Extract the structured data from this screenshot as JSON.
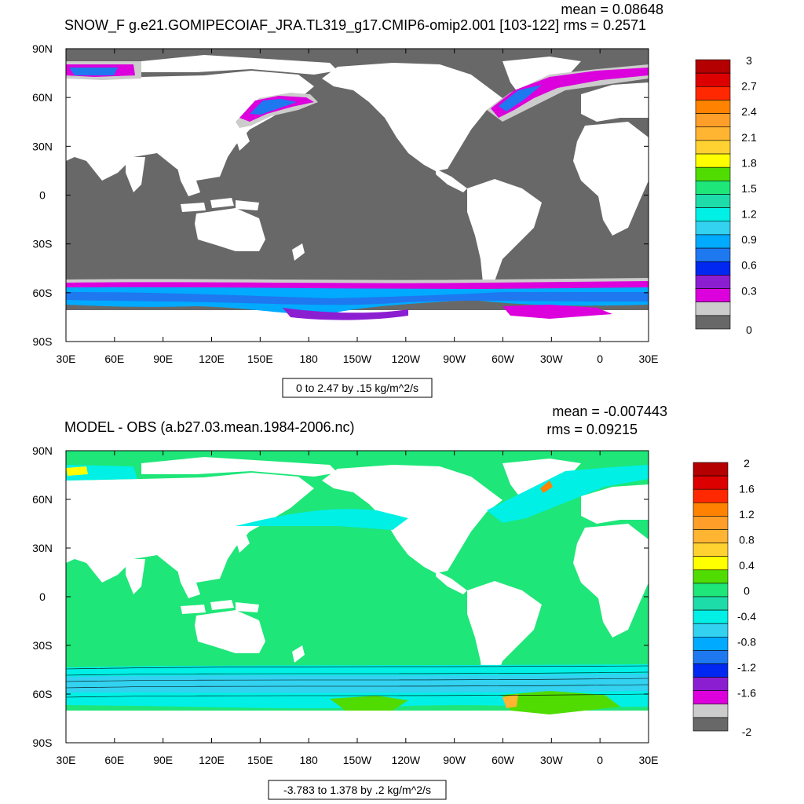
{
  "chart_data": [
    {
      "type": "heatmap",
      "title": "SNOW_F g.e21.GOMIPECOIAF_JRA.TL319_g17.CMIP6-omip2.001 [103-122]",
      "stats": {
        "mean": "mean = 0.08648",
        "rms": "rms = 0.2571"
      },
      "subtitle": "0 to 2.47 by .15 kg/m^2/s",
      "x_ticks": [
        "30E",
        "60E",
        "90E",
        "120E",
        "150E",
        "180",
        "150W",
        "120W",
        "90W",
        "60W",
        "30W",
        "0",
        "30E"
      ],
      "y_ticks": [
        "90N",
        "60N",
        "30N",
        "0",
        "30S",
        "60S",
        "90S"
      ],
      "colorbar": {
        "labels": [
          "3",
          "2.7",
          "2.4",
          "2.1",
          "1.8",
          "1.5",
          "1.2",
          "0.9",
          "0.6",
          "0.3",
          "0"
        ],
        "colors": [
          "#b40000",
          "#dc0000",
          "#ff2800",
          "#ff8200",
          "#ff9e28",
          "#ffb432",
          "#ffd232",
          "#ffff00",
          "#50dc00",
          "#1ee678",
          "#1edcaa",
          "#00f0e6",
          "#32d2f0",
          "#00aaff",
          "#1e78f0",
          "#0028f0",
          "#8c1ed2",
          "#dc00dc",
          "#cccccc",
          "#686868"
        ]
      },
      "ylim": [
        -90,
        90
      ],
      "xlim_label": "30E to 30E"
    },
    {
      "type": "heatmap",
      "title": "MODEL - OBS (a.b27.03.mean.1984-2006.nc)",
      "stats": {
        "mean": "mean = -0.007443",
        "rms": "rms = 0.09215"
      },
      "subtitle": "-3.783 to 1.378 by .2 kg/m^2/s",
      "x_ticks": [
        "30E",
        "60E",
        "90E",
        "120E",
        "150E",
        "180",
        "150W",
        "120W",
        "90W",
        "60W",
        "30W",
        "0",
        "30E"
      ],
      "y_ticks": [
        "90N",
        "60N",
        "30N",
        "0",
        "30S",
        "60S",
        "90S"
      ],
      "colorbar": {
        "labels": [
          "2",
          "1.6",
          "1.2",
          "0.8",
          "0.4",
          "0",
          "-0.4",
          "-0.8",
          "-1.2",
          "-1.6",
          "-2"
        ],
        "colors": [
          "#b40000",
          "#dc0000",
          "#ff2800",
          "#ff8200",
          "#ff9e28",
          "#ffb432",
          "#ffd232",
          "#ffff00",
          "#50dc00",
          "#1ee678",
          "#1edcaa",
          "#00f0e6",
          "#32d2f0",
          "#00aaff",
          "#1e78f0",
          "#0028f0",
          "#8c1ed2",
          "#dc00dc",
          "#cccccc",
          "#686868"
        ]
      },
      "ylim": [
        -90,
        90
      ]
    }
  ]
}
